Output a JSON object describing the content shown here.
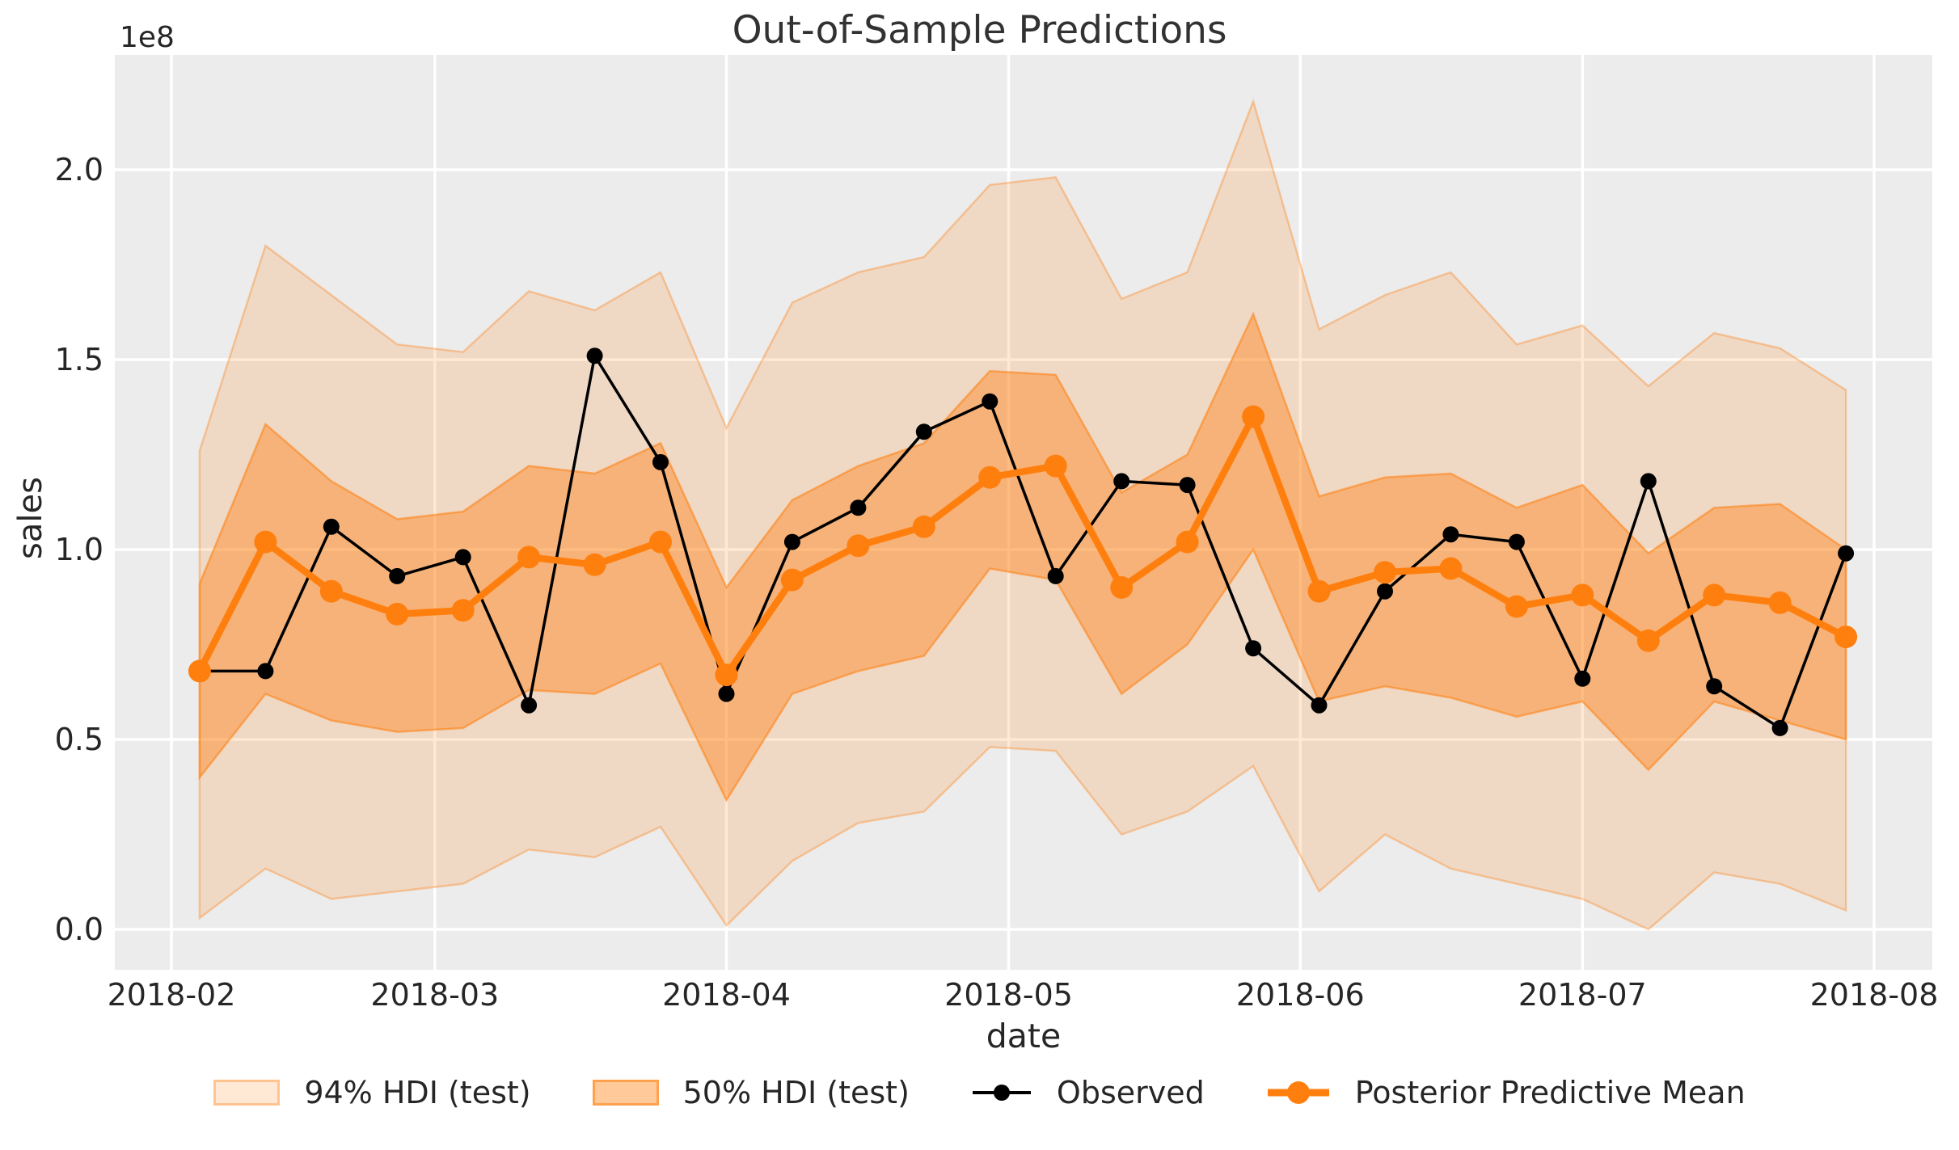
{
  "chart": {
    "title": "Out-of-Sample Predictions",
    "xlabel": "date",
    "ylabel": "sales",
    "y_offset_text": "1e8"
  },
  "legend": {
    "items": [
      {
        "label": "94% HDI (test)",
        "marker": "patch"
      },
      {
        "label": "50% HDI (test)",
        "marker": "patch"
      },
      {
        "label": "Observed",
        "marker": "line-dot"
      },
      {
        "label": "Posterior Predictive Mean",
        "marker": "line-dot"
      }
    ]
  },
  "chart_data": {
    "type": "line",
    "title": "Out-of-Sample Predictions",
    "xlabel": "date",
    "ylabel": "sales",
    "y_offset_text": "1e8",
    "units": "values are in 1e8 (hundreds of millions), matching the axis offset text",
    "x_tick_labels": [
      "2018-02",
      "2018-03",
      "2018-04",
      "2018-05",
      "2018-06",
      "2018-07",
      "2018-08"
    ],
    "y_ticks": [
      0.0,
      0.5,
      1.0,
      1.5,
      2.0
    ],
    "ylim": [
      -0.11,
      2.3
    ],
    "grid": true,
    "legend_position": "bottom",
    "background_color": "#ececec",
    "grid_color": "#ffffff",
    "text_color": "#262626",
    "x": [
      "2018-02-04",
      "2018-02-11",
      "2018-02-18",
      "2018-02-25",
      "2018-03-04",
      "2018-03-11",
      "2018-03-18",
      "2018-03-25",
      "2018-04-01",
      "2018-04-08",
      "2018-04-15",
      "2018-04-22",
      "2018-04-29",
      "2018-05-06",
      "2018-05-13",
      "2018-05-20",
      "2018-05-27",
      "2018-06-03",
      "2018-06-10",
      "2018-06-17",
      "2018-06-24",
      "2018-07-01",
      "2018-07-08",
      "2018-07-15",
      "2018-07-22",
      "2018-07-29"
    ],
    "series": [
      {
        "name": "94% HDI (test)",
        "type": "band",
        "color": "#ff7f0e",
        "fill_opacity": 0.18,
        "edge_opacity": 0.35,
        "lower": [
          0.03,
          0.16,
          0.08,
          0.1,
          0.12,
          0.21,
          0.19,
          0.27,
          0.01,
          0.18,
          0.28,
          0.31,
          0.48,
          0.47,
          0.25,
          0.31,
          0.43,
          0.1,
          0.25,
          0.16,
          0.12,
          0.08,
          0.0,
          0.15,
          0.12,
          0.05
        ],
        "upper": [
          1.26,
          1.8,
          1.67,
          1.54,
          1.52,
          1.68,
          1.63,
          1.73,
          1.32,
          1.65,
          1.73,
          1.77,
          1.96,
          1.98,
          1.66,
          1.73,
          2.18,
          1.58,
          1.67,
          1.73,
          1.54,
          1.59,
          1.43,
          1.57,
          1.53,
          1.42
        ]
      },
      {
        "name": "50% HDI (test)",
        "type": "band",
        "color": "#ff7f0e",
        "fill_opacity": 0.42,
        "edge_opacity": 0.55,
        "lower": [
          0.4,
          0.62,
          0.55,
          0.52,
          0.53,
          0.63,
          0.62,
          0.7,
          0.34,
          0.62,
          0.68,
          0.72,
          0.95,
          0.92,
          0.62,
          0.75,
          1.0,
          0.6,
          0.64,
          0.61,
          0.56,
          0.6,
          0.42,
          0.6,
          0.55,
          0.5
        ],
        "upper": [
          0.91,
          1.33,
          1.18,
          1.08,
          1.1,
          1.22,
          1.2,
          1.28,
          0.9,
          1.13,
          1.22,
          1.28,
          1.47,
          1.46,
          1.15,
          1.25,
          1.62,
          1.14,
          1.19,
          1.2,
          1.11,
          1.17,
          0.99,
          1.11,
          1.12,
          1.0
        ]
      },
      {
        "name": "Observed",
        "type": "line_markers",
        "color": "#000000",
        "line_width": 3.5,
        "marker_radius": 10,
        "values": [
          0.68,
          0.68,
          1.06,
          0.93,
          0.98,
          0.59,
          1.51,
          1.23,
          0.62,
          1.02,
          1.11,
          1.31,
          1.39,
          0.93,
          1.18,
          1.17,
          0.74,
          0.59,
          0.89,
          1.04,
          1.02,
          0.66,
          1.18,
          0.64,
          0.53,
          0.99
        ]
      },
      {
        "name": "Posterior Predictive Mean",
        "type": "line_markers",
        "color": "#ff7f0e",
        "line_width": 8.5,
        "marker_radius": 14,
        "values": [
          0.68,
          1.02,
          0.89,
          0.83,
          0.84,
          0.98,
          0.96,
          1.02,
          0.67,
          0.92,
          1.01,
          1.06,
          1.19,
          1.22,
          0.9,
          1.02,
          1.35,
          0.89,
          0.94,
          0.95,
          0.85,
          0.88,
          0.76,
          0.88,
          0.86,
          0.77
        ]
      }
    ]
  }
}
